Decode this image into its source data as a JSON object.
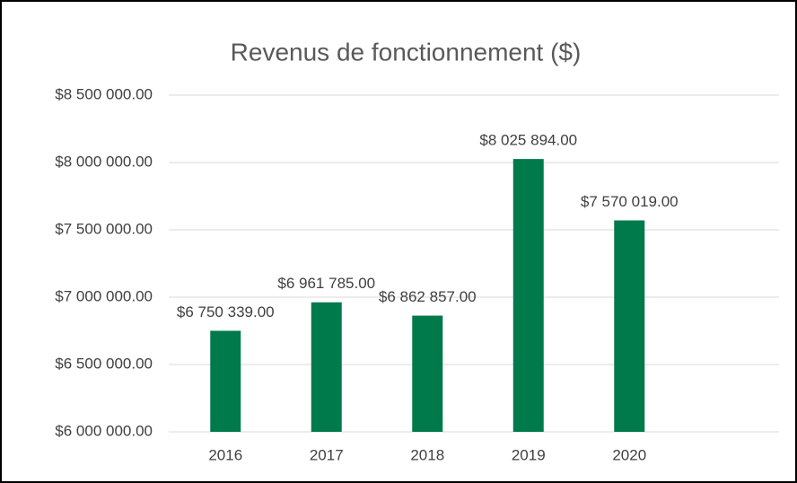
{
  "chart_data": {
    "type": "bar",
    "title": "Revenus de fonctionnement ($)",
    "categories": [
      "2016",
      "2017",
      "2018",
      "2019",
      "2020"
    ],
    "values": [
      6750339,
      6961785,
      6862857,
      8025894,
      7570019
    ],
    "value_labels": [
      "$6 750 339.00",
      "$6 961 785.00",
      "$6 862 857.00",
      "$8 025 894.00",
      "$7 570 019.00"
    ],
    "color": "#007a4a",
    "ylim": [
      6000000,
      8500000
    ],
    "yticks": [
      {
        "value": 6000000,
        "label": "$6 000 000.00"
      },
      {
        "value": 6500000,
        "label": "$6 500 000.00"
      },
      {
        "value": 7000000,
        "label": "$7 000 000.00"
      },
      {
        "value": 7500000,
        "label": "$7 500 000.00"
      },
      {
        "value": 8000000,
        "label": "$8 000 000.00"
      },
      {
        "value": 8500000,
        "label": "$8 500 000.00"
      }
    ],
    "grid": true
  }
}
